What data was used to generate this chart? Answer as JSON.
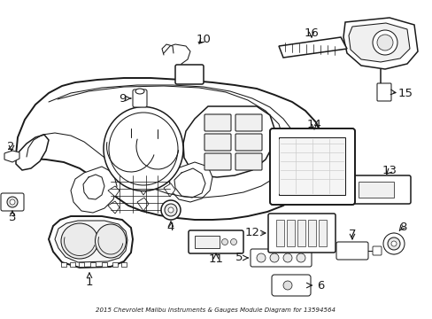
{
  "title": "2015 Chevrolet Malibu Instruments & Gauges Module Diagram for 13594564",
  "background_color": "#ffffff",
  "line_color": "#1a1a1a",
  "text_color": "#1a1a1a",
  "figsize": [
    4.89,
    3.6
  ],
  "dpi": 100,
  "lw_main": 1.1,
  "lw_thin": 0.75,
  "lw_thick": 1.4
}
